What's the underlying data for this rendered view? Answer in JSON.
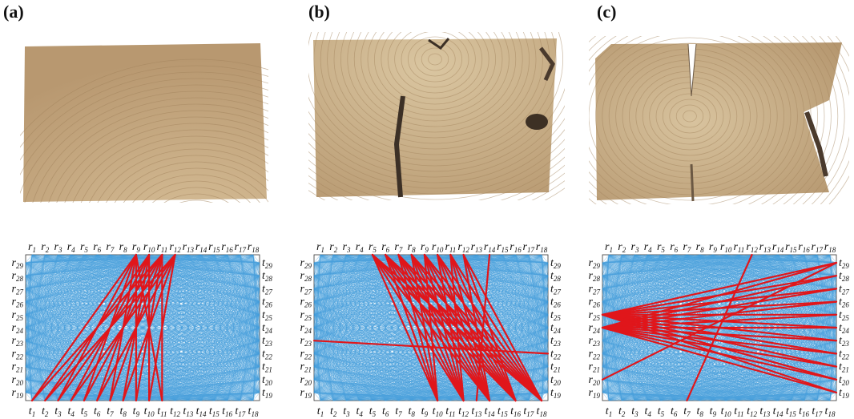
{
  "panels": [
    {
      "label": "(a)",
      "photo": "wood-cross-section-intact",
      "red_rays": "r9-r12 top to bottom t1-t11"
    },
    {
      "label": "(b)",
      "photo": "wood-cross-section-cracked",
      "red_rays": "r5-r13 top to bottom t10-t18"
    },
    {
      "label": "(c)",
      "photo": "wood-cross-section-split",
      "red_rays": "left r24-r25 fan to right side"
    }
  ],
  "sensors": {
    "top": [
      "r1",
      "r2",
      "r3",
      "r4",
      "r5",
      "r6",
      "r7",
      "r8",
      "r9",
      "r10",
      "r11",
      "r12",
      "r13",
      "r14",
      "r15",
      "r16",
      "r17",
      "r18"
    ],
    "bottom": [
      "t1",
      "t2",
      "t3",
      "t4",
      "t5",
      "t6",
      "t7",
      "t8",
      "t9",
      "t10",
      "t11",
      "t12",
      "t13",
      "t14",
      "t15",
      "t16",
      "t17",
      "t18"
    ],
    "left": [
      "r29",
      "r28",
      "r27",
      "r26",
      "r25",
      "r24",
      "r23",
      "r22",
      "r21",
      "r20",
      "r19"
    ],
    "right": [
      "t29",
      "t28",
      "t27",
      "t26",
      "t25",
      "t24",
      "t23",
      "t22",
      "t21",
      "t20",
      "t19"
    ]
  },
  "colors": {
    "ray": "#2a8fd6",
    "highlight": "#e0161b",
    "wood": "#c9ad86",
    "wood_dark": "#9c7d57"
  }
}
